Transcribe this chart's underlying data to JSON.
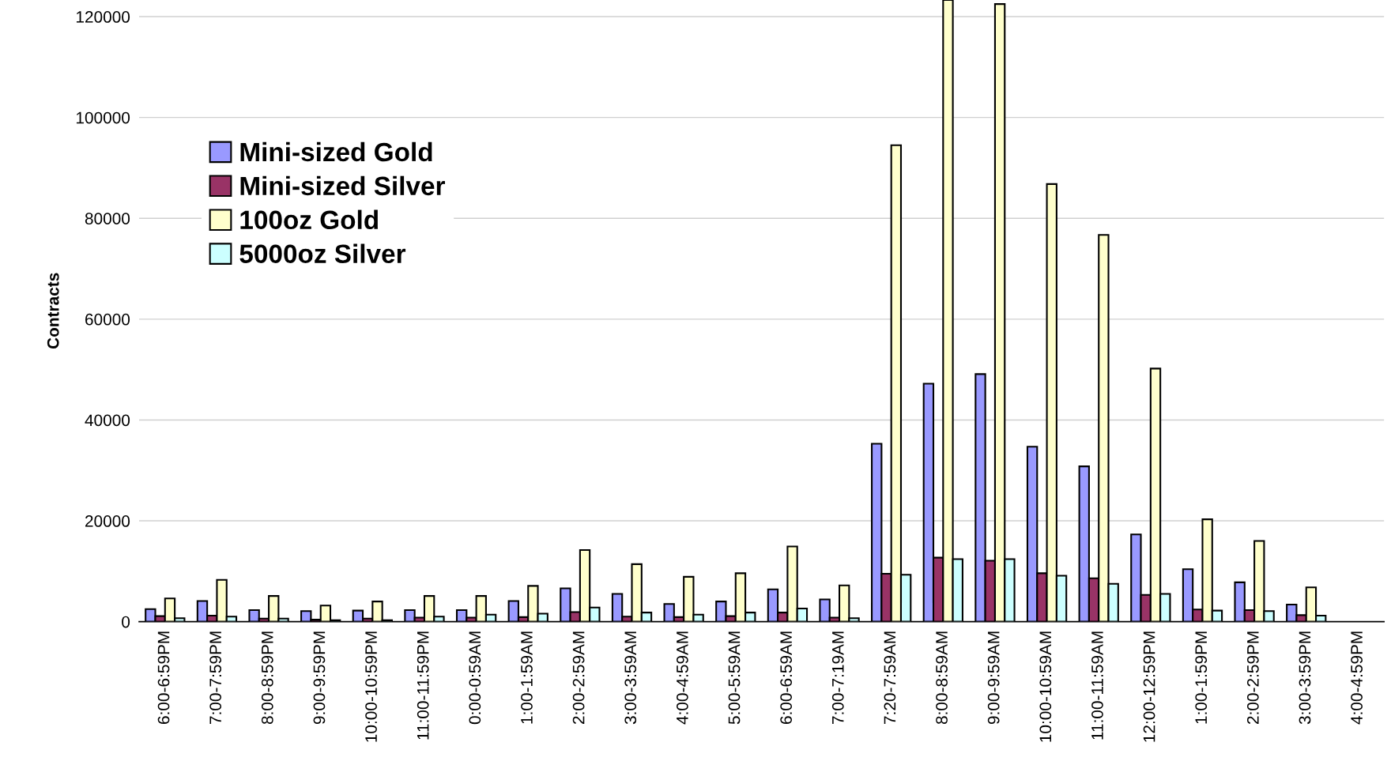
{
  "chart_data": {
    "type": "bar",
    "ylabel": "Contracts",
    "categories": [
      "6:00-6:59PM",
      "7:00-7:59PM",
      "8:00-8:59PM",
      "9:00-9:59PM",
      "10:00-10:59PM",
      "11:00-11:59PM",
      "0:00-0:59AM",
      "1:00-1:59AM",
      "2:00-2:59AM",
      "3:00-3:59AM",
      "4:00-4:59AM",
      "5:00-5:59AM",
      "6:00-6:59AM",
      "7:00-7:19AM",
      "7:20-7:59AM",
      "8:00-8:59AM",
      "9:00-9:59AM",
      "10:00-10:59AM",
      "11:00-11:59AM",
      "12:00-12:59PM",
      "1:00-1:59PM",
      "2:00-2:59PM",
      "3:00-3:59PM",
      "4:00-4:59PM"
    ],
    "series": [
      {
        "name": "Mini-sized Gold",
        "color": "#9999ff",
        "values": [
          2500,
          4100,
          2300,
          2100,
          2200,
          2300,
          2300,
          4100,
          6600,
          5500,
          3500,
          4000,
          6400,
          4400,
          35300,
          47200,
          49100,
          34700,
          30800,
          17300,
          10400,
          7800,
          3400,
          null
        ]
      },
      {
        "name": "Mini-sized Silver",
        "color": "#993366",
        "values": [
          1100,
          1200,
          600,
          400,
          600,
          800,
          800,
          900,
          1900,
          1000,
          900,
          1100,
          1800,
          800,
          9500,
          12700,
          12100,
          9600,
          8600,
          5300,
          2400,
          2300,
          1300,
          null
        ]
      },
      {
        "name": "100oz Gold",
        "color": "#ffffcc",
        "values": [
          4600,
          8300,
          5100,
          3200,
          4000,
          5100,
          5100,
          7100,
          14200,
          11400,
          8900,
          9600,
          14900,
          7200,
          94500,
          123300,
          122500,
          86800,
          76700,
          50200,
          20300,
          16000,
          6800,
          null
        ]
      },
      {
        "name": "5000oz Silver",
        "color": "#ccffff",
        "values": [
          700,
          1000,
          600,
          300,
          300,
          1000,
          1400,
          1600,
          2800,
          1800,
          1400,
          1800,
          2600,
          700,
          9300,
          12400,
          12400,
          9100,
          7500,
          5500,
          2200,
          2100,
          1200,
          null
        ]
      }
    ],
    "ylim": [
      0,
      123300
    ],
    "yticks": [
      0,
      20000,
      40000,
      60000,
      80000,
      100000,
      120000
    ],
    "grid": "y",
    "legend": "left"
  }
}
